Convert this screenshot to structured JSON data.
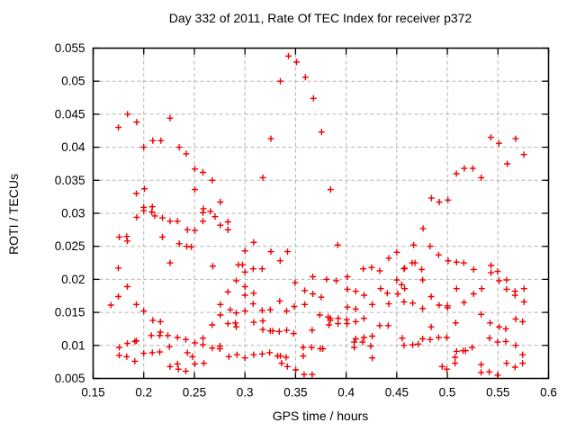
{
  "colors": {
    "background": "#ffffff",
    "border": "#000000",
    "grid": "#b2b2b2",
    "marker": "#ee0000",
    "text": "#000000"
  },
  "chart_data": {
    "type": "scatter",
    "title": "Day 332 of 2011, Rate Of TEC Index for receiver p372",
    "xlabel": "GPS time / hours",
    "ylabel": "ROTI / TECUs",
    "xlim": [
      0.15,
      0.6
    ],
    "ylim": [
      0.005,
      0.055
    ],
    "x_ticks": [
      0.15,
      0.2,
      0.25,
      0.3,
      0.35,
      0.4,
      0.45,
      0.5,
      0.55,
      0.6
    ],
    "y_ticks": [
      0.005,
      0.01,
      0.015,
      0.02,
      0.025,
      0.03,
      0.035,
      0.04,
      0.045,
      0.05,
      0.055
    ],
    "grid": true,
    "legend": "none",
    "marker": {
      "shape": "plus",
      "color": "#ee0000",
      "size": 7
    },
    "points": [
      [
        0.184,
        0.045
      ],
      [
        0.193,
        0.0438
      ],
      [
        0.175,
        0.043
      ],
      [
        0.226,
        0.0444
      ],
      [
        0.209,
        0.041
      ],
      [
        0.217,
        0.041
      ],
      [
        0.2,
        0.04
      ],
      [
        0.235,
        0.04
      ],
      [
        0.242,
        0.039
      ],
      [
        0.2505,
        0.0367
      ],
      [
        0.2585,
        0.0362
      ],
      [
        0.2677,
        0.035
      ],
      [
        0.2505,
        0.0336
      ],
      [
        0.2007,
        0.0337
      ],
      [
        0.1927,
        0.033
      ],
      [
        0.2757,
        0.0317
      ],
      [
        0.2,
        0.0309
      ],
      [
        0.2084,
        0.031
      ],
      [
        0.259,
        0.0307
      ],
      [
        0.343,
        0.0538
      ],
      [
        0.351,
        0.0529
      ],
      [
        0.3597,
        0.0506
      ],
      [
        0.335,
        0.05
      ],
      [
        0.3677,
        0.0474
      ],
      [
        0.3757,
        0.0423
      ],
      [
        0.3256,
        0.0413
      ],
      [
        0.3176,
        0.0354
      ],
      [
        0.3846,
        0.0336
      ],
      [
        0.543,
        0.0415
      ],
      [
        0.551,
        0.0406
      ],
      [
        0.5675,
        0.0413
      ],
      [
        0.5756,
        0.0389
      ],
      [
        0.5592,
        0.0375
      ],
      [
        0.5168,
        0.0368
      ],
      [
        0.5252,
        0.0368
      ],
      [
        0.5089,
        0.036
      ],
      [
        0.5335,
        0.0354
      ],
      [
        0.4843,
        0.0323
      ],
      [
        0.492,
        0.0317
      ],
      [
        0.5006,
        0.032
      ],
      [
        0.2,
        0.0304
      ],
      [
        0.208,
        0.0302
      ],
      [
        0.211,
        0.0296
      ],
      [
        0.193,
        0.0294
      ],
      [
        0.2185,
        0.0293
      ],
      [
        0.226,
        0.0288
      ],
      [
        0.2333,
        0.0288
      ],
      [
        0.2585,
        0.0301
      ],
      [
        0.2659,
        0.0303
      ],
      [
        0.2585,
        0.0288
      ],
      [
        0.2704,
        0.0295
      ],
      [
        0.2757,
        0.0282
      ],
      [
        0.2832,
        0.0287
      ],
      [
        0.2832,
        0.0275
      ],
      [
        0.2431,
        0.0275
      ],
      [
        0.2505,
        0.0274
      ],
      [
        0.1758,
        0.0264
      ],
      [
        0.1832,
        0.0265
      ],
      [
        0.1838,
        0.0258
      ],
      [
        0.2185,
        0.0264
      ],
      [
        0.2351,
        0.0254
      ],
      [
        0.2425,
        0.025
      ],
      [
        0.247,
        0.0249
      ],
      [
        0.3,
        0.0243
      ],
      [
        0.226,
        0.0225
      ],
      [
        0.1749,
        0.0217
      ],
      [
        0.2682,
        0.022
      ],
      [
        0.2935,
        0.0222
      ],
      [
        0.2975,
        0.0222
      ],
      [
        0.3,
        0.0211
      ],
      [
        0.1838,
        0.0189
      ],
      [
        0.2914,
        0.0198
      ],
      [
        0.3,
        0.0189
      ],
      [
        0.2832,
        0.0181
      ],
      [
        0.3,
        0.0176
      ],
      [
        0.1749,
        0.0174
      ],
      [
        0.1675,
        0.0161
      ],
      [
        0.1927,
        0.0162
      ],
      [
        0.2757,
        0.0162
      ],
      [
        0.2855,
        0.0154
      ],
      [
        0.2,
        0.0152
      ],
      [
        0.2757,
        0.0146
      ],
      [
        0.2914,
        0.0149
      ],
      [
        0.3,
        0.0152
      ],
      [
        0.209,
        0.0138
      ],
      [
        0.2164,
        0.0136
      ],
      [
        0.2905,
        0.0134
      ],
      [
        0.2677,
        0.0131
      ],
      [
        0.2832,
        0.0133
      ],
      [
        0.2914,
        0.0128
      ],
      [
        0.2164,
        0.012
      ],
      [
        0.2075,
        0.0115
      ],
      [
        0.2158,
        0.0115
      ],
      [
        0.2238,
        0.0115
      ],
      [
        0.2333,
        0.0112
      ],
      [
        0.2416,
        0.0109
      ],
      [
        0.1927,
        0.0107
      ],
      [
        0.1838,
        0.0103
      ],
      [
        0.1912,
        0.0106
      ],
      [
        0.2585,
        0.0111
      ],
      [
        0.2585,
        0.0101
      ],
      [
        0.2505,
        0.0104
      ],
      [
        0.1758,
        0.0097
      ],
      [
        0.1758,
        0.0085
      ],
      [
        0.1832,
        0.0083
      ],
      [
        0.2,
        0.0088
      ],
      [
        0.2084,
        0.0089
      ],
      [
        0.2158,
        0.009
      ],
      [
        0.2253,
        0.0098
      ],
      [
        0.1912,
        0.0076
      ],
      [
        0.2431,
        0.0089
      ],
      [
        0.2481,
        0.0083
      ],
      [
        0.2677,
        0.0096
      ],
      [
        0.2752,
        0.0099
      ],
      [
        0.2752,
        0.0095
      ],
      [
        0.2841,
        0.0083
      ],
      [
        0.2921,
        0.0086
      ],
      [
        0.3,
        0.0081
      ],
      [
        0.226,
        0.0068
      ],
      [
        0.2333,
        0.0072
      ],
      [
        0.2342,
        0.0064
      ],
      [
        0.2416,
        0.0061
      ],
      [
        0.2505,
        0.0072
      ],
      [
        0.2594,
        0.0073
      ],
      [
        0.3087,
        0.0256
      ],
      [
        0.3256,
        0.0242
      ],
      [
        0.3421,
        0.0242
      ],
      [
        0.3348,
        0.0228
      ],
      [
        0.3917,
        0.0252
      ],
      [
        0.4501,
        0.0241
      ],
      [
        0.4421,
        0.0232
      ],
      [
        0.3081,
        0.0216
      ],
      [
        0.317,
        0.0216
      ],
      [
        0.4169,
        0.0216
      ],
      [
        0.4252,
        0.0218
      ],
      [
        0.4332,
        0.0213
      ],
      [
        0.4578,
        0.0217
      ],
      [
        0.3671,
        0.0204
      ],
      [
        0.3807,
        0.02
      ],
      [
        0.3902,
        0.0198
      ],
      [
        0.4012,
        0.0204
      ],
      [
        0.3496,
        0.0195
      ],
      [
        0.4501,
        0.0199
      ],
      [
        0.4549,
        0.0192
      ],
      [
        0.4578,
        0.0186
      ],
      [
        0.3087,
        0.0179
      ],
      [
        0.3591,
        0.0183
      ],
      [
        0.3671,
        0.0178
      ],
      [
        0.3754,
        0.0173
      ],
      [
        0.4012,
        0.0185
      ],
      [
        0.4095,
        0.0182
      ],
      [
        0.4178,
        0.0176
      ],
      [
        0.4341,
        0.0186
      ],
      [
        0.4406,
        0.0179
      ],
      [
        0.451,
        0.0178
      ],
      [
        0.3344,
        0.0167
      ],
      [
        0.3081,
        0.0163
      ],
      [
        0.3487,
        0.0159
      ],
      [
        0.3591,
        0.0162
      ],
      [
        0.317,
        0.0153
      ],
      [
        0.325,
        0.0154
      ],
      [
        0.4012,
        0.0158
      ],
      [
        0.4095,
        0.0155
      ],
      [
        0.4258,
        0.0162
      ],
      [
        0.4421,
        0.0163
      ],
      [
        0.3412,
        0.0152
      ],
      [
        0.3739,
        0.0146
      ],
      [
        0.3822,
        0.0143
      ],
      [
        0.3843,
        0.0141
      ],
      [
        0.3843,
        0.0138
      ],
      [
        0.3922,
        0.0141
      ],
      [
        0.4006,
        0.0139
      ],
      [
        0.4095,
        0.0136
      ],
      [
        0.4176,
        0.0141
      ],
      [
        0.3176,
        0.0137
      ],
      [
        0.3087,
        0.0135
      ],
      [
        0.4332,
        0.013
      ],
      [
        0.4415,
        0.013
      ],
      [
        0.383,
        0.0131
      ],
      [
        0.392,
        0.0133
      ],
      [
        0.401,
        0.0133
      ],
      [
        0.3176,
        0.0124
      ],
      [
        0.325,
        0.0122
      ],
      [
        0.3275,
        0.0122
      ],
      [
        0.3339,
        0.0121
      ],
      [
        0.3412,
        0.0123
      ],
      [
        0.3664,
        0.0123
      ],
      [
        0.3481,
        0.0118
      ],
      [
        0.4095,
        0.011
      ],
      [
        0.4176,
        0.0112
      ],
      [
        0.4258,
        0.0114
      ],
      [
        0.4554,
        0.0111
      ],
      [
        0.408,
        0.0105
      ],
      [
        0.4163,
        0.0105
      ],
      [
        0.4243,
        0.0099
      ],
      [
        0.408,
        0.0097
      ],
      [
        0.3576,
        0.0097
      ],
      [
        0.3659,
        0.0097
      ],
      [
        0.3745,
        0.0095
      ],
      [
        0.377,
        0.0095
      ],
      [
        0.3087,
        0.0086
      ],
      [
        0.317,
        0.0087
      ],
      [
        0.3244,
        0.0089
      ],
      [
        0.3323,
        0.0084
      ],
      [
        0.335,
        0.0084
      ],
      [
        0.3407,
        0.0082
      ],
      [
        0.3576,
        0.0084
      ],
      [
        0.4258,
        0.0081
      ],
      [
        0.3362,
        0.0073
      ],
      [
        0.3419,
        0.0068
      ],
      [
        0.3502,
        0.0063
      ],
      [
        0.3585,
        0.0056
      ],
      [
        0.3665,
        0.0056
      ],
      [
        0.476,
        0.0277
      ],
      [
        0.4667,
        0.0252
      ],
      [
        0.483,
        0.025
      ],
      [
        0.4914,
        0.0237
      ],
      [
        0.5008,
        0.0228
      ],
      [
        0.5091,
        0.0226
      ],
      [
        0.5162,
        0.0225
      ],
      [
        0.4652,
        0.0225
      ],
      [
        0.468,
        0.0225
      ],
      [
        0.4572,
        0.0216
      ],
      [
        0.4747,
        0.0215
      ],
      [
        0.526,
        0.0215
      ],
      [
        0.5432,
        0.0221
      ],
      [
        0.5432,
        0.021
      ],
      [
        0.5497,
        0.0212
      ],
      [
        0.4756,
        0.0199
      ],
      [
        0.5512,
        0.0198
      ],
      [
        0.5586,
        0.0199
      ],
      [
        0.534,
        0.0186
      ],
      [
        0.5091,
        0.0186
      ],
      [
        0.5586,
        0.0185
      ],
      [
        0.5669,
        0.0182
      ],
      [
        0.5758,
        0.0186
      ],
      [
        0.5669,
        0.0176
      ],
      [
        0.526,
        0.0178
      ],
      [
        0.484,
        0.0174
      ],
      [
        0.4572,
        0.0166
      ],
      [
        0.4658,
        0.0164
      ],
      [
        0.5165,
        0.0165
      ],
      [
        0.5758,
        0.0166
      ],
      [
        0.4919,
        0.0161
      ],
      [
        0.5002,
        0.016
      ],
      [
        0.5002,
        0.0157
      ],
      [
        0.4756,
        0.0156
      ],
      [
        0.5334,
        0.0147
      ],
      [
        0.5675,
        0.014
      ],
      [
        0.5744,
        0.0136
      ],
      [
        0.5423,
        0.0134
      ],
      [
        0.5082,
        0.0134
      ],
      [
        0.484,
        0.0128
      ],
      [
        0.5512,
        0.0128
      ],
      [
        0.5578,
        0.0125
      ],
      [
        0.4914,
        0.0112
      ],
      [
        0.4994,
        0.0112
      ],
      [
        0.4756,
        0.011
      ],
      [
        0.483,
        0.0109
      ],
      [
        0.4658,
        0.0101
      ],
      [
        0.4572,
        0.01
      ],
      [
        0.4712,
        0.0102
      ],
      [
        0.5417,
        0.0111
      ],
      [
        0.5497,
        0.0105
      ],
      [
        0.5578,
        0.0106
      ],
      [
        0.5675,
        0.01
      ],
      [
        0.5156,
        0.0092
      ],
      [
        0.518,
        0.0092
      ],
      [
        0.5245,
        0.0097
      ],
      [
        0.5091,
        0.0091
      ],
      [
        0.5744,
        0.0086
      ],
      [
        0.5744,
        0.0073
      ],
      [
        0.5076,
        0.0082
      ],
      [
        0.5076,
        0.0073
      ],
      [
        0.5586,
        0.0073
      ],
      [
        0.5669,
        0.0067
      ],
      [
        0.4949,
        0.0068
      ],
      [
        0.4994,
        0.0064
      ],
      [
        0.5334,
        0.0071
      ],
      [
        0.5334,
        0.0059
      ],
      [
        0.5414,
        0.006
      ],
      [
        0.5497,
        0.0055
      ]
    ]
  }
}
